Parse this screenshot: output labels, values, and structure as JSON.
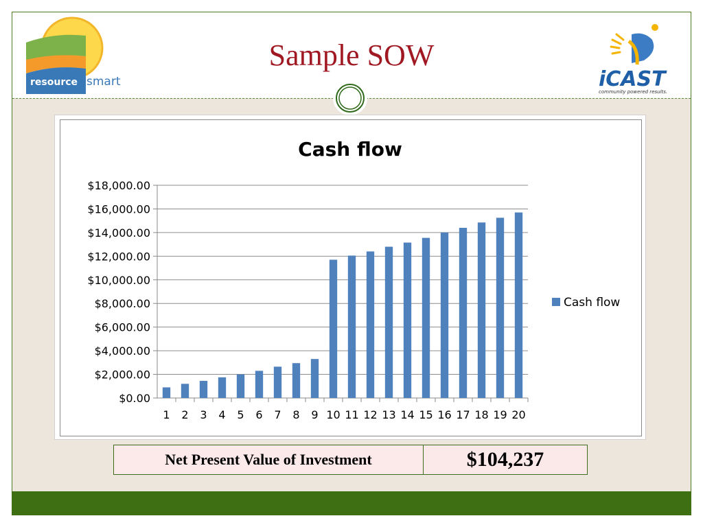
{
  "slide": {
    "title": "Sample SOW"
  },
  "logos": {
    "left_text_a": "resource",
    "left_text_b": "smart",
    "right_name": "iCAST",
    "right_tagline": "community powered results."
  },
  "colors": {
    "title": "#a01822",
    "bar": "#4f81bd",
    "footer": "#3e6f13",
    "border": "#4a7a2a"
  },
  "chart_data": {
    "type": "bar",
    "title": "Cash flow",
    "categories": [
      "1",
      "2",
      "3",
      "4",
      "5",
      "6",
      "7",
      "8",
      "9",
      "10",
      "11",
      "12",
      "13",
      "14",
      "15",
      "16",
      "17",
      "18",
      "19",
      "20"
    ],
    "series": [
      {
        "name": "Cash flow",
        "values": [
          900,
          1200,
          1450,
          1750,
          2000,
          2300,
          2650,
          2950,
          3300,
          11700,
          12050,
          12400,
          12800,
          13150,
          13550,
          14000,
          14400,
          14850,
          15250,
          15700
        ]
      }
    ],
    "yticks": [
      "$0.00",
      "$2,000.00",
      "$4,000.00",
      "$6,000.00",
      "$8,000.00",
      "$10,000.00",
      "$12,000.00",
      "$14,000.00",
      "$16,000.00",
      "$18,000.00"
    ],
    "ylim": [
      0,
      18000
    ],
    "grid": true,
    "legend": "right"
  },
  "npv": {
    "label": "Net Present Value of Investment",
    "value": "$104,237"
  }
}
